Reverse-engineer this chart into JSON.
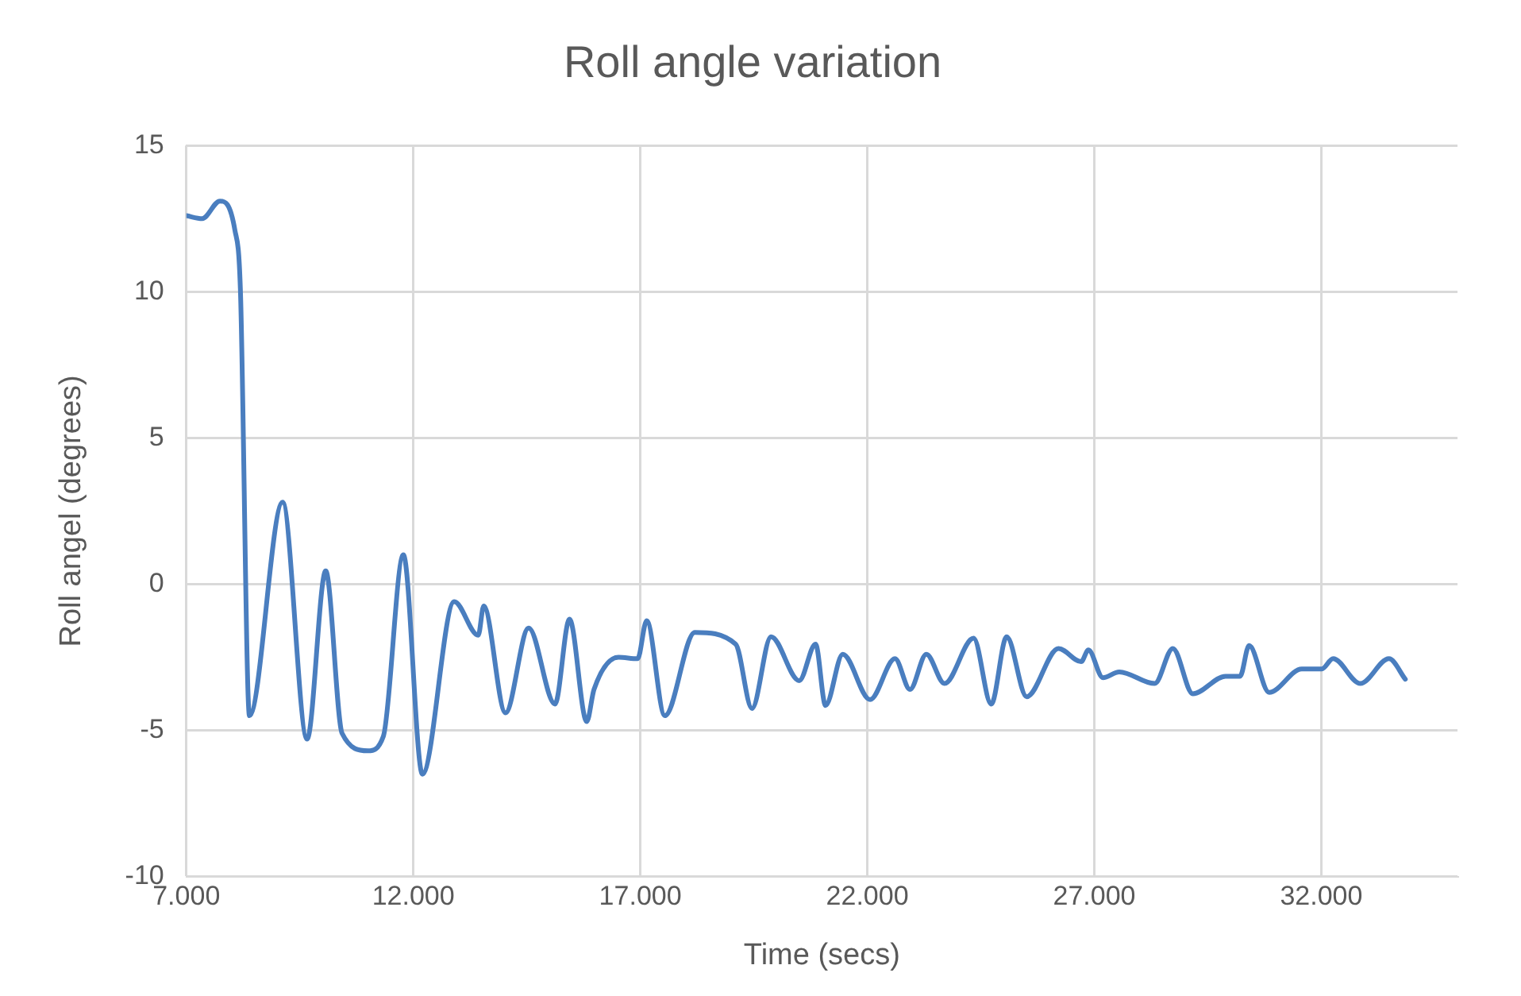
{
  "chart_data": {
    "type": "line",
    "title": "Roll angle variation",
    "xlabel": "Time (secs)",
    "ylabel": "Roll angel (degrees)",
    "xlim": [
      7000,
      35000
    ],
    "xticks": [
      {
        "value": 7000,
        "label": "7.000"
      },
      {
        "value": 12000,
        "label": "12.000"
      },
      {
        "value": 17000,
        "label": "17.000"
      },
      {
        "value": 22000,
        "label": "22.000"
      },
      {
        "value": 27000,
        "label": "27.000"
      },
      {
        "value": 32000,
        "label": "32.000"
      }
    ],
    "ylim": [
      -10,
      15
    ],
    "yticks": [
      -10,
      -5,
      0,
      5,
      10,
      15
    ],
    "grid": true,
    "legend": false,
    "marker": "none",
    "line_style": "solid",
    "series": [
      {
        "color": "#4a7ebf",
        "x": [
          7000,
          7350,
          7740,
          8070,
          8190,
          8390,
          9120,
          9660,
          10070,
          10430,
          11000,
          11340,
          11780,
          12200,
          12900,
          13430,
          13550,
          14030,
          14540,
          15120,
          15440,
          15820,
          15980,
          16520,
          16940,
          17140,
          17540,
          18200,
          19100,
          19460,
          19880,
          20500,
          20860,
          21080,
          21460,
          22060,
          22610,
          22940,
          23300,
          23700,
          24340,
          24730,
          25070,
          25510,
          26210,
          26710,
          26870,
          27190,
          27550,
          28330,
          28730,
          29170,
          29890,
          30210,
          30410,
          30850,
          31570,
          32010,
          32260,
          32860,
          33490,
          33850
        ],
        "values": [
          12.6,
          12.5,
          13.1,
          12.1,
          10.1,
          -4.5,
          2.8,
          -5.3,
          0.45,
          -5.1,
          -5.7,
          -5.2,
          1.0,
          -6.5,
          -0.6,
          -1.75,
          -0.75,
          -4.4,
          -1.5,
          -4.1,
          -1.2,
          -4.7,
          -3.6,
          -2.5,
          -2.55,
          -1.25,
          -4.5,
          -1.65,
          -2.05,
          -4.25,
          -1.8,
          -3.3,
          -2.05,
          -4.15,
          -2.4,
          -3.95,
          -2.55,
          -3.6,
          -2.4,
          -3.4,
          -1.85,
          -4.1,
          -1.8,
          -3.85,
          -2.2,
          -2.65,
          -2.25,
          -3.2,
          -3.0,
          -3.4,
          -2.2,
          -3.75,
          -3.15,
          -3.15,
          -2.1,
          -3.7,
          -2.9,
          -2.9,
          -2.55,
          -3.4,
          -2.55,
          -3.25
        ]
      }
    ]
  }
}
